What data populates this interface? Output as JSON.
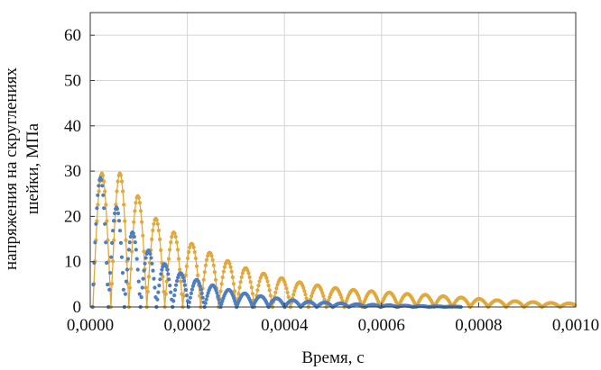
{
  "chart_data": {
    "type": "scatter",
    "title": "",
    "xlabel": "Время, с",
    "ylabel_lines": [
      "напряжения на скруглениях",
      "шейки, МПа"
    ],
    "xlim": [
      0,
      0.001
    ],
    "ylim": [
      0,
      65
    ],
    "x_ticks": [
      "0,0000",
      "0,0002",
      "0,0004",
      "0,0006",
      "0,0008",
      "0,0010"
    ],
    "y_ticks": [
      "0",
      "10",
      "20",
      "30",
      "40",
      "50",
      "60"
    ],
    "grid": true,
    "legend": "none",
    "series": [
      {
        "color": "#e3a83a",
        "marker": "dot",
        "line": true,
        "peak_x": [
          2.4e-05,
          6.1e-05,
          9.8e-05,
          0.000135,
          0.000172,
          0.000209,
          0.000246,
          0.000283,
          0.00032,
          0.000357,
          0.000394,
          0.000431,
          0.000468,
          0.000505,
          0.000542,
          0.000579,
          0.000616,
          0.000653,
          0.00069,
          0.000727,
          0.000764,
          0.000801,
          0.000838,
          0.000875,
          0.000912,
          0.000949,
          0.000986
        ],
        "peak_y": [
          29.5,
          29.5,
          24.5,
          19.5,
          16.5,
          14.0,
          12.0,
          10.2,
          8.6,
          7.4,
          6.4,
          5.5,
          4.8,
          4.2,
          3.8,
          3.5,
          3.2,
          2.9,
          2.7,
          2.4,
          2.1,
          1.8,
          1.5,
          1.3,
          1.1,
          0.9,
          0.8
        ]
      },
      {
        "color": "#4d7ec2",
        "marker": "dot",
        "line": false,
        "peak_x": [
          2.1e-05,
          5.4e-05,
          8.7e-05,
          0.00012,
          0.000153,
          0.000186,
          0.000219,
          0.000252,
          0.000285,
          0.000318,
          0.000351,
          0.000384,
          0.000417,
          0.00045,
          0.000483,
          0.000516,
          0.000549,
          0.000582,
          0.000615,
          0.000648,
          0.000681,
          0.000714,
          0.000747
        ],
        "peak_y": [
          28.5,
          22.0,
          16.5,
          12.5,
          9.5,
          7.5,
          6.0,
          4.8,
          3.8,
          3.0,
          2.4,
          1.9,
          1.5,
          1.2,
          1.0,
          0.8,
          0.6,
          0.5,
          0.4,
          0.3,
          0.2,
          0.15,
          0.1
        ]
      }
    ]
  }
}
